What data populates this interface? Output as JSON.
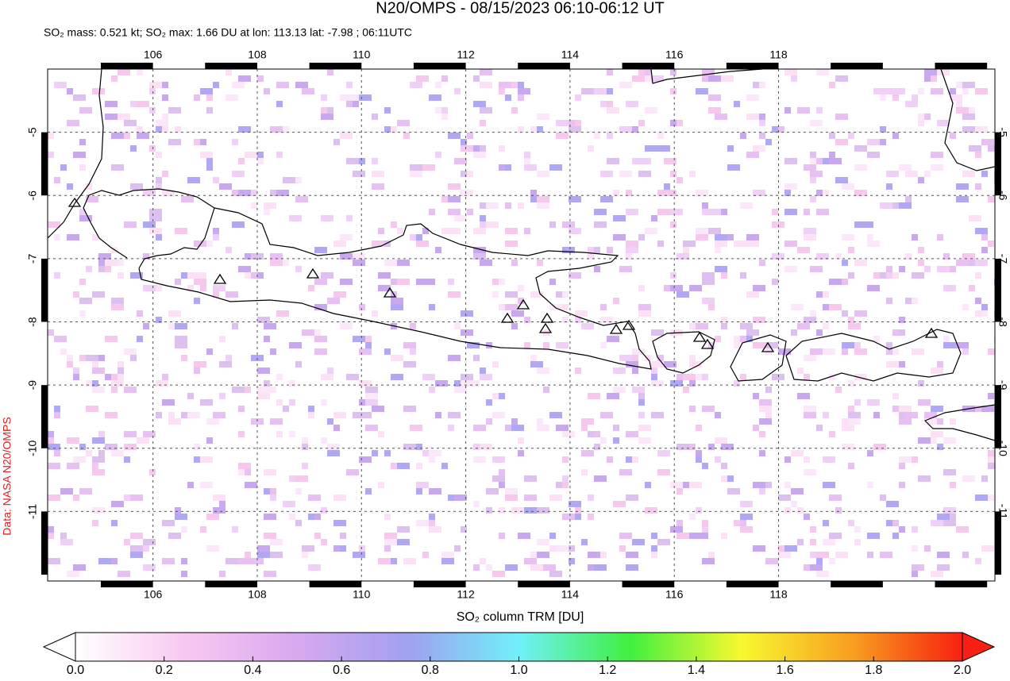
{
  "chart_data": {
    "type": "map",
    "title": "N20/OMPS - 08/15/2023 06:10-06:12 UT",
    "subtitle": "SO₂ mass: 0.521 kt; SO₂ max: 1.66 DU at lon: 113.13 lat: -7.98 ; 06:11UTC",
    "credit": "Data: NASA N20/OMPS",
    "xlim": [
      103.98,
      122.15
    ],
    "ylim": [
      -12.1,
      -4.0
    ],
    "xticks": [
      106,
      108,
      110,
      112,
      114,
      116,
      118
    ],
    "yticks": [
      -5,
      -6,
      -7,
      -8,
      -9,
      -10,
      -11
    ],
    "grid": true,
    "colorbar": {
      "label": "SO₂ column TRM [DU]",
      "lim": [
        0,
        2
      ],
      "ticks": [
        {
          "value": 0,
          "label": "0.0"
        },
        0.2,
        0.4,
        0.6,
        0.8,
        {
          "value": 1,
          "label": "1.0"
        },
        1.2,
        1.4,
        1.6,
        1.8,
        {
          "value": 2,
          "label": "2.0"
        }
      ],
      "colors": [
        "#ffffff",
        "#f8c8f0",
        "#d8a8f0",
        "#a0a0f0",
        "#70f0f8",
        "#40f040",
        "#f8f830",
        "#f8a020",
        "#f82010"
      ]
    }
  }
}
